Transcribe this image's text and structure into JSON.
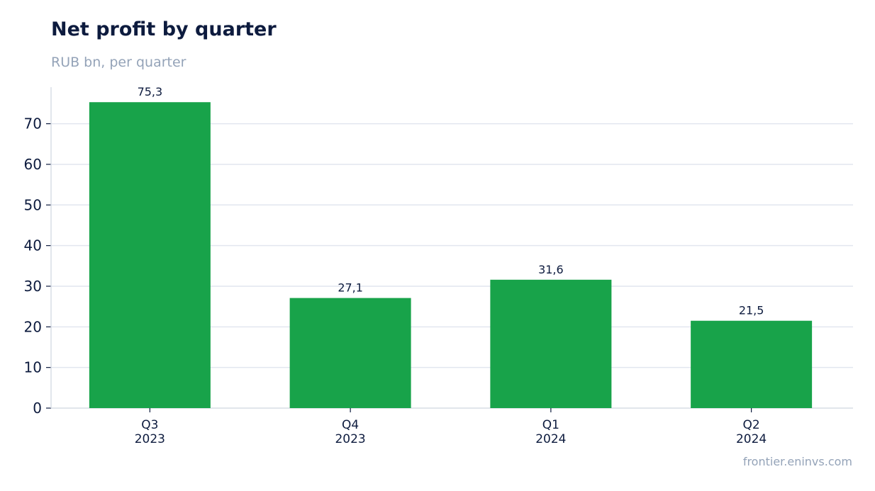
{
  "title": "Net profit by quarter",
  "subtitle": "RUB bn, per quarter",
  "source": "frontier.eninvs.com",
  "colors": {
    "bar": "#18a34a",
    "grid": "#e2e6ef",
    "axis": "#cfd5df",
    "text": "#0d1b3e",
    "muted": "#94a3b8"
  },
  "chart_data": {
    "type": "bar",
    "categories": [
      [
        "Q3",
        "2023"
      ],
      [
        "Q4",
        "2023"
      ],
      [
        "Q1",
        "2024"
      ],
      [
        "Q2",
        "2024"
      ]
    ],
    "values": [
      75.3,
      27.1,
      31.6,
      21.5
    ],
    "data_labels": [
      "75,3",
      "27,1",
      "31,6",
      "21,5"
    ],
    "yticks": [
      0,
      10,
      20,
      30,
      40,
      50,
      60,
      70
    ],
    "ylim": [
      0,
      79
    ],
    "grid": true,
    "legend": "none"
  }
}
